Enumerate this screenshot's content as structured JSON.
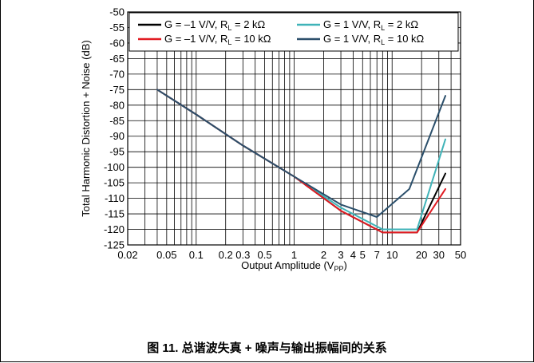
{
  "caption": "图 11. 总谐波失真 + 噪声与输出振幅间的关系",
  "chart_data": {
    "type": "line",
    "xscale": "log",
    "xlim": [
      0.02,
      50
    ],
    "ylim": [
      -125,
      -50
    ],
    "xlabel": {
      "main": "Output Amplitude (V",
      "sub": "PP",
      "end": ")"
    },
    "ylabel": "Total Harmonic Distortion  + Noise (dB)",
    "x_tick_labels": [
      {
        "v": 0.02,
        "t": "0.02"
      },
      {
        "v": 0.05,
        "t": "0.05"
      },
      {
        "v": 0.1,
        "t": "0.1"
      },
      {
        "v": 0.2,
        "t": "0.2"
      },
      {
        "v": 0.3,
        "t": "0.3"
      },
      {
        "v": 0.5,
        "t": "0.5"
      },
      {
        "v": 1,
        "t": "1"
      },
      {
        "v": 2,
        "t": "2"
      },
      {
        "v": 3,
        "t": "3"
      },
      {
        "v": 4,
        "t": "4"
      },
      {
        "v": 5,
        "t": "5"
      },
      {
        "v": 7,
        "t": "7"
      },
      {
        "v": 10,
        "t": "10"
      },
      {
        "v": 20,
        "t": "20"
      },
      {
        "v": 30,
        "t": "30"
      },
      {
        "v": 50,
        "t": "50"
      }
    ],
    "y_ticks": [
      -50,
      -55,
      -60,
      -65,
      -70,
      -75,
      -80,
      -85,
      -90,
      -95,
      -100,
      -105,
      -110,
      -115,
      -120,
      -125
    ],
    "grid": true,
    "legend_position": "top-right",
    "series": [
      {
        "legend": {
          "main": "G = –1 V/V, R",
          "sub": "L",
          "end": " = 2 kΩ"
        },
        "color": "#000000",
        "x": [
          0.04,
          0.1,
          0.3,
          1,
          3,
          8,
          15,
          18,
          35
        ],
        "y": [
          -75,
          -83,
          -93,
          -103,
          -114,
          -121,
          -121,
          -121,
          -102
        ]
      },
      {
        "legend": {
          "main": "G = 1 V/V, R",
          "sub": "L",
          "end": " = 2 kΩ"
        },
        "color": "#3fb3b8",
        "x": [
          0.04,
          0.1,
          0.3,
          1,
          3,
          8,
          15,
          18,
          35
        ],
        "y": [
          -75,
          -83,
          -93,
          -103,
          -113,
          -120,
          -120,
          -120,
          -91
        ]
      },
      {
        "legend": {
          "main": "G = –1 V/V, R",
          "sub": "L",
          "end": " = 10 kΩ"
        },
        "color": "#e11b22",
        "x": [
          0.04,
          0.1,
          0.3,
          1,
          3,
          8,
          15,
          18,
          35
        ],
        "y": [
          -75,
          -83,
          -93,
          -103,
          -114,
          -121,
          -121,
          -121,
          -107
        ]
      },
      {
        "legend": {
          "main": "G = 1 V/V, R",
          "sub": "L",
          "end": " = 10 kΩ"
        },
        "color": "#2b4f6b",
        "x": [
          0.04,
          0.1,
          0.3,
          1,
          3,
          7,
          15,
          35
        ],
        "y": [
          -75,
          -83,
          -93,
          -103,
          -112,
          -116,
          -107,
          -77
        ]
      }
    ]
  }
}
